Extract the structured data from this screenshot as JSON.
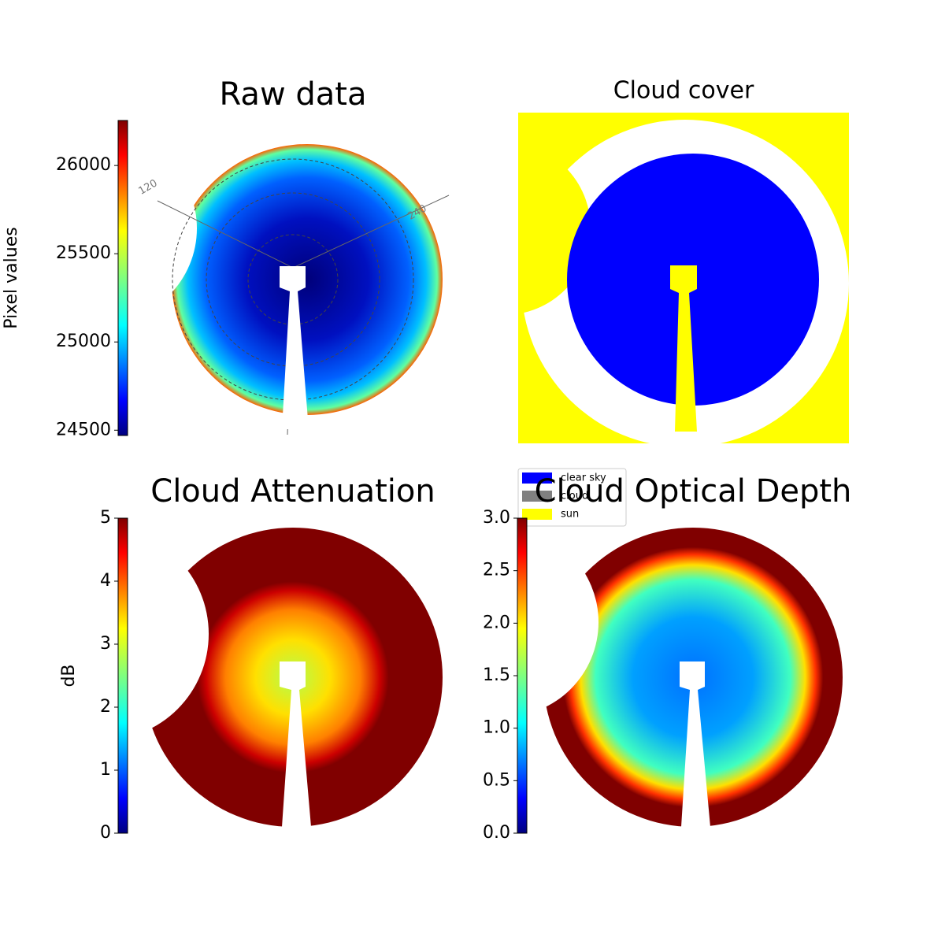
{
  "chart_data": [
    {
      "type": "image",
      "title": "Raw data",
      "colorbar_label": "Pixel values",
      "colormap": "jet",
      "clim": [
        24470,
        26255
      ],
      "ticks": [
        24500,
        25000,
        25500,
        26000
      ],
      "annotations": [
        "120",
        "240"
      ]
    },
    {
      "type": "image",
      "title": "Cloud cover",
      "legend": [
        {
          "name": "clear sky",
          "color": "#0000ff"
        },
        {
          "name": "cloud",
          "color": "#808080"
        },
        {
          "name": "sun",
          "color": "#ffff00"
        }
      ]
    },
    {
      "type": "image",
      "title": "Cloud Attenuation",
      "colorbar_label": "dB",
      "colormap": "jet",
      "clim": [
        0,
        5
      ],
      "ticks": [
        0,
        1,
        2,
        3,
        4,
        5
      ]
    },
    {
      "type": "image",
      "title": "Cloud Optical Depth",
      "colormap": "jet",
      "clim": [
        0,
        3
      ],
      "ticks": [
        {
          "value": 0,
          "label": "0.0"
        },
        0.5,
        {
          "value": 1,
          "label": "1.0"
        },
        1.5,
        {
          "value": 2,
          "label": "2.0"
        },
        2.5,
        {
          "value": 3,
          "label": "3.0"
        }
      ]
    }
  ]
}
